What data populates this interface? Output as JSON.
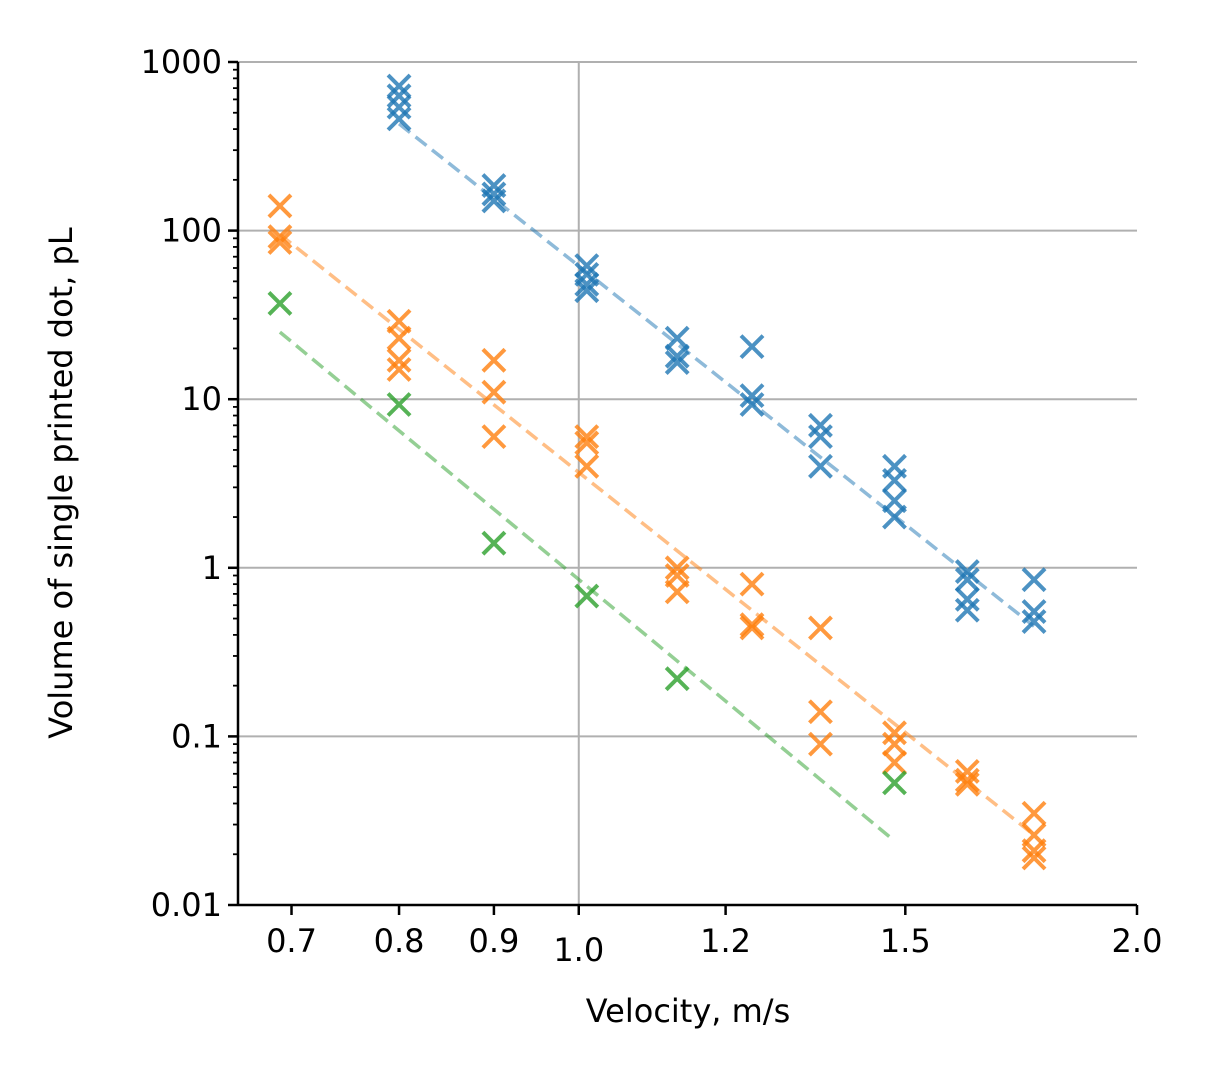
{
  "chart_data": {
    "type": "scatter",
    "title": "",
    "xlabel": "Velocity, m/s",
    "ylabel": "Volume of single printed dot, pL",
    "x_scale": "log",
    "y_scale": "log",
    "xlim": [
      0.655,
      2.0
    ],
    "ylim": [
      0.01,
      1000
    ],
    "grid": true,
    "x_ticks": [
      {
        "value": 0.7,
        "label": "0.7"
      },
      {
        "value": 0.8,
        "label": "0.8"
      },
      {
        "value": 0.9,
        "label": "0.9"
      },
      {
        "value": 1.0,
        "label": "1.0"
      },
      {
        "value": 1.2,
        "label": "1.2"
      },
      {
        "value": 1.5,
        "label": "1.5"
      },
      {
        "value": 2.0,
        "label": "2.0"
      }
    ],
    "y_ticks": [
      {
        "value": 0.01,
        "label": "0.01"
      },
      {
        "value": 0.1,
        "label": "0.1"
      },
      {
        "value": 1,
        "label": "1"
      },
      {
        "value": 10,
        "label": "10"
      },
      {
        "value": 100,
        "label": "100"
      },
      {
        "value": 1000,
        "label": "1000"
      }
    ],
    "series": [
      {
        "color": "#1f77b4",
        "points": [
          [
            0.8,
            720
          ],
          [
            0.8,
            630
          ],
          [
            0.8,
            540
          ],
          [
            0.8,
            460
          ],
          [
            0.9,
            185
          ],
          [
            0.9,
            165
          ],
          [
            0.9,
            150
          ],
          [
            1.01,
            62
          ],
          [
            1.01,
            55
          ],
          [
            1.01,
            48
          ],
          [
            1.01,
            44
          ],
          [
            1.13,
            23
          ],
          [
            1.13,
            18
          ],
          [
            1.13,
            16.5
          ],
          [
            1.24,
            20.5
          ],
          [
            1.24,
            10.5
          ],
          [
            1.24,
            9.3
          ],
          [
            1.35,
            7.0
          ],
          [
            1.35,
            6.0
          ],
          [
            1.35,
            4.0
          ],
          [
            1.48,
            4.0
          ],
          [
            1.48,
            3.3
          ],
          [
            1.48,
            2.5
          ],
          [
            1.48,
            2.0
          ],
          [
            1.62,
            0.95
          ],
          [
            1.62,
            0.85
          ],
          [
            1.62,
            0.65
          ],
          [
            1.62,
            0.56
          ],
          [
            1.76,
            0.85
          ],
          [
            1.76,
            0.55
          ],
          [
            1.76,
            0.48
          ]
        ],
        "fit": [
          [
            0.8,
            430
          ],
          [
            1.76,
            0.45
          ]
        ]
      },
      {
        "color": "#ff7f0e",
        "points": [
          [
            0.69,
            140
          ],
          [
            0.69,
            92
          ],
          [
            0.69,
            85
          ],
          [
            0.8,
            29
          ],
          [
            0.8,
            23
          ],
          [
            0.8,
            17
          ],
          [
            0.8,
            15
          ],
          [
            0.9,
            17
          ],
          [
            0.9,
            11
          ],
          [
            0.9,
            6.0
          ],
          [
            1.01,
            6.0
          ],
          [
            1.01,
            5.5
          ],
          [
            1.01,
            4.0
          ],
          [
            1.13,
            1.0
          ],
          [
            1.13,
            0.9
          ],
          [
            1.13,
            0.72
          ],
          [
            1.24,
            0.8
          ],
          [
            1.24,
            0.46
          ],
          [
            1.24,
            0.44
          ],
          [
            1.35,
            0.44
          ],
          [
            1.35,
            0.14
          ],
          [
            1.35,
            0.09
          ],
          [
            1.48,
            0.105
          ],
          [
            1.48,
            0.09
          ],
          [
            1.48,
            0.07
          ],
          [
            1.62,
            0.062
          ],
          [
            1.62,
            0.055
          ],
          [
            1.62,
            0.052
          ],
          [
            1.76,
            0.035
          ],
          [
            1.76,
            0.026
          ],
          [
            1.76,
            0.021
          ],
          [
            1.76,
            0.019
          ]
        ],
        "fit": [
          [
            0.69,
            95
          ],
          [
            1.76,
            0.026
          ]
        ]
      },
      {
        "color": "#2ca02c",
        "points": [
          [
            0.69,
            37
          ],
          [
            0.8,
            9.3
          ],
          [
            0.9,
            1.4
          ],
          [
            1.01,
            0.68
          ],
          [
            1.13,
            0.22
          ],
          [
            1.48,
            0.053
          ]
        ],
        "fit": [
          [
            0.69,
            25
          ],
          [
            1.48,
            0.024
          ]
        ]
      }
    ]
  }
}
